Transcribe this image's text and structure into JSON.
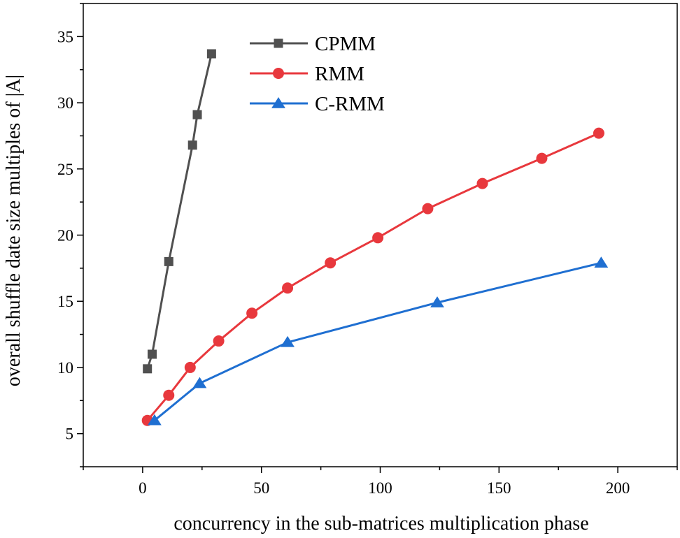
{
  "chart_data": {
    "type": "line",
    "title": "",
    "xlabel": "concurrency in the sub-matrices multiplication phase",
    "ylabel": "overall shuffle date size multiples of |A|",
    "xlim": [
      -25,
      225
    ],
    "ylim": [
      2.5,
      37.5
    ],
    "xticks": [
      0,
      50,
      100,
      150,
      200
    ],
    "yticks": [
      5,
      10,
      15,
      20,
      25,
      30,
      35
    ],
    "legend_position": "top-left",
    "series": [
      {
        "name": "CPMM",
        "color": "#505050",
        "marker": "square",
        "x": [
          2,
          4,
          11,
          21,
          23,
          29
        ],
        "y": [
          9.9,
          11.0,
          18.0,
          26.8,
          29.1,
          33.7
        ]
      },
      {
        "name": "RMM",
        "color": "#e8383d",
        "marker": "circle",
        "x": [
          2,
          11,
          20,
          32,
          46,
          61,
          79,
          99,
          120,
          143,
          168,
          192
        ],
        "y": [
          6.0,
          7.9,
          10.0,
          12.0,
          14.1,
          16.0,
          17.9,
          19.8,
          22.0,
          23.9,
          25.8,
          27.7
        ]
      },
      {
        "name": "C-RMM",
        "color": "#1f6fd1",
        "marker": "triangle",
        "x": [
          5,
          24,
          61,
          124,
          193
        ],
        "y": [
          6.0,
          8.8,
          11.9,
          14.9,
          17.9
        ]
      }
    ]
  }
}
